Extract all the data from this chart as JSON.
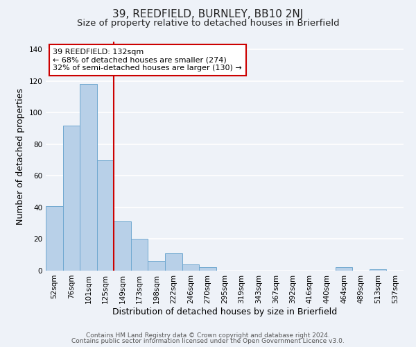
{
  "title": "39, REEDFIELD, BURNLEY, BB10 2NJ",
  "subtitle": "Size of property relative to detached houses in Brierfield",
  "xlabel": "Distribution of detached houses by size in Brierfield",
  "ylabel": "Number of detached properties",
  "bar_labels": [
    "52sqm",
    "76sqm",
    "101sqm",
    "125sqm",
    "149sqm",
    "173sqm",
    "198sqm",
    "222sqm",
    "246sqm",
    "270sqm",
    "295sqm",
    "319sqm",
    "343sqm",
    "367sqm",
    "392sqm",
    "416sqm",
    "440sqm",
    "464sqm",
    "489sqm",
    "513sqm",
    "537sqm"
  ],
  "bar_heights": [
    41,
    92,
    118,
    70,
    31,
    20,
    6,
    11,
    4,
    2,
    0,
    0,
    0,
    0,
    0,
    0,
    0,
    2,
    0,
    1,
    0
  ],
  "bar_color": "#b8d0e8",
  "bar_edge_color": "#6fa8d0",
  "vline_x": 3.5,
  "vline_color": "#cc0000",
  "annotation_text": "39 REEDFIELD: 132sqm\n← 68% of detached houses are smaller (274)\n32% of semi-detached houses are larger (130) →",
  "annotation_box_color": "#ffffff",
  "annotation_box_edge_color": "#cc0000",
  "ylim": [
    0,
    145
  ],
  "yticks": [
    0,
    20,
    40,
    60,
    80,
    100,
    120,
    140
  ],
  "footer_line1": "Contains HM Land Registry data © Crown copyright and database right 2024.",
  "footer_line2": "Contains public sector information licensed under the Open Government Licence v3.0.",
  "background_color": "#eef2f8",
  "grid_color": "#ffffff",
  "title_fontsize": 11,
  "subtitle_fontsize": 9.5,
  "axis_label_fontsize": 9,
  "tick_fontsize": 7.5,
  "footer_fontsize": 6.5,
  "annotation_fontsize": 8
}
